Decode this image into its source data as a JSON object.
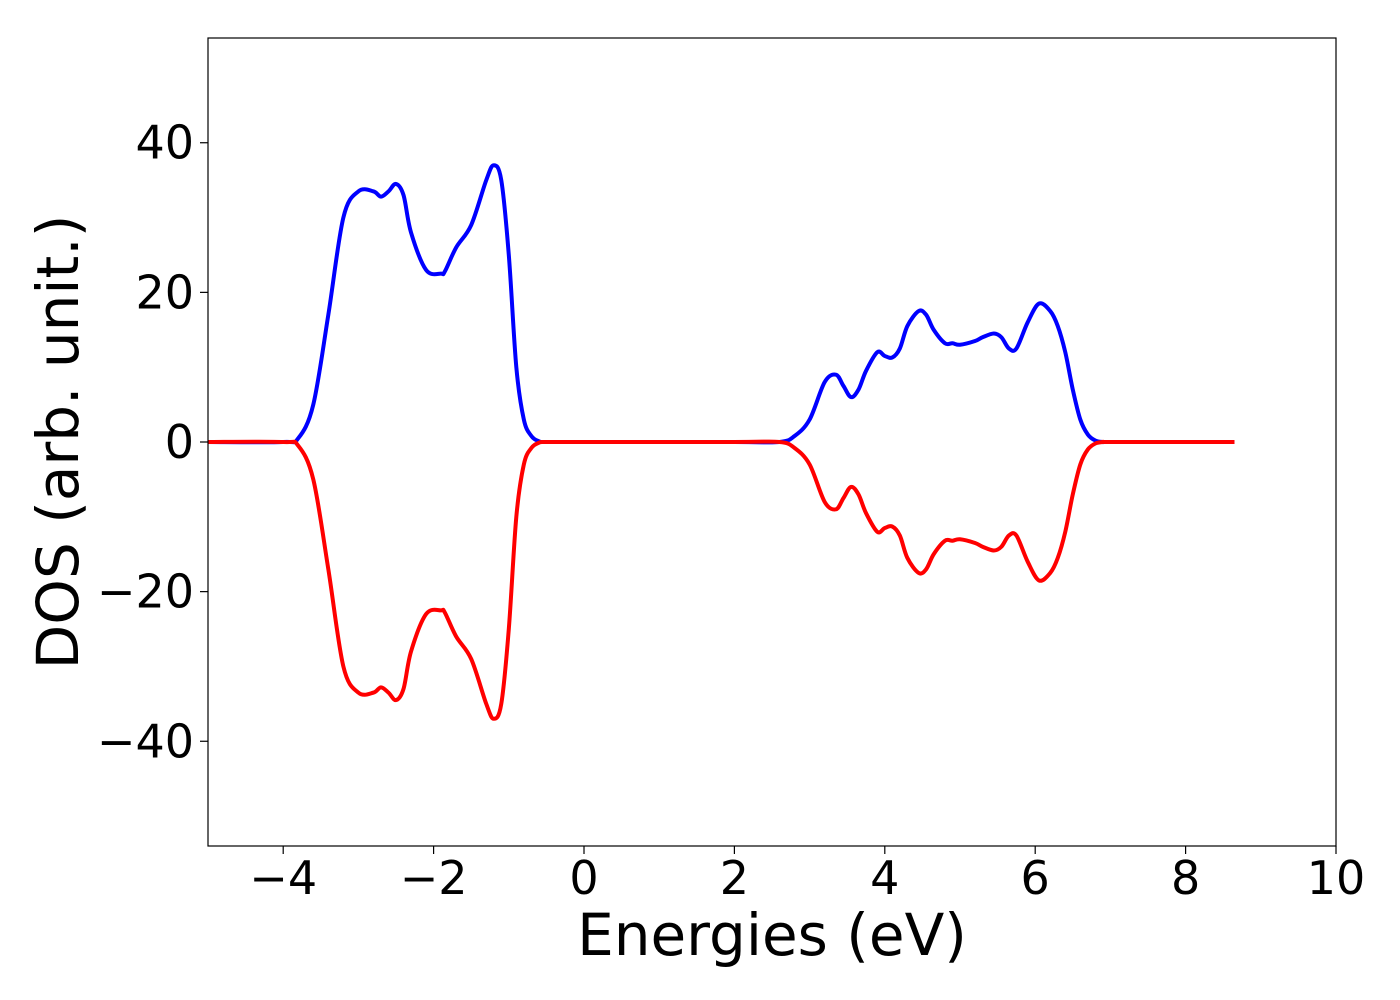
{
  "chart_data": {
    "type": "line",
    "title": "",
    "xlabel": "Energies (eV)",
    "ylabel": "DOS (arb. unit.)",
    "xlim": [
      -5,
      10
    ],
    "ylim": [
      -54,
      54
    ],
    "xticks": [
      -4,
      -2,
      0,
      2,
      4,
      6,
      8,
      10
    ],
    "yticks": [
      -40,
      -20,
      0,
      20,
      40
    ],
    "xtick_labels": [
      "−4",
      "−2",
      "0",
      "2",
      "4",
      "6",
      "8",
      "10"
    ],
    "ytick_labels": [
      "−40",
      "−20",
      "0",
      "20",
      "40"
    ],
    "grid": false,
    "legend": "none",
    "series": [
      {
        "color": "#0000ff",
        "x": [
          -5,
          -4.0,
          -3.8,
          -3.6,
          -3.4,
          -3.2,
          -3.0,
          -2.8,
          -2.7,
          -2.6,
          -2.5,
          -2.4,
          -2.3,
          -2.1,
          -1.9,
          -1.85,
          -1.7,
          -1.5,
          -1.3,
          -1.2,
          -1.1,
          -1.0,
          -0.9,
          -0.8,
          -0.7,
          -0.6,
          -0.5,
          0,
          2.0,
          2.6,
          2.8,
          3.0,
          3.2,
          3.35,
          3.45,
          3.55,
          3.65,
          3.75,
          3.9,
          4.0,
          4.1,
          4.2,
          4.3,
          4.45,
          4.55,
          4.65,
          4.8,
          4.9,
          5.0,
          5.2,
          5.3,
          5.45,
          5.55,
          5.65,
          5.75,
          5.9,
          6.05,
          6.2,
          6.3,
          6.4,
          6.5,
          6.6,
          6.7,
          6.8,
          6.9,
          7.0,
          8.0,
          8.65
        ],
        "y": [
          0,
          0,
          0.5,
          5,
          17,
          30,
          33.5,
          33.5,
          32.8,
          33.5,
          34.5,
          33,
          28,
          23,
          22.5,
          22.8,
          26,
          29,
          35,
          37,
          35,
          25,
          10,
          3,
          0.8,
          0.1,
          0,
          0,
          0,
          0,
          0.8,
          3,
          8,
          9,
          7.5,
          6,
          7,
          9.5,
          12,
          11.5,
          11.3,
          12.5,
          15.5,
          17.5,
          17,
          15,
          13.2,
          13.2,
          13.0,
          13.5,
          14,
          14.5,
          14,
          12.5,
          12.5,
          16,
          18.5,
          17.5,
          15.5,
          12,
          7,
          3,
          1,
          0.2,
          0,
          0,
          0,
          0
        ]
      },
      {
        "color": "#ff0000",
        "x": [
          -5,
          -4.0,
          -3.8,
          -3.6,
          -3.4,
          -3.2,
          -3.0,
          -2.8,
          -2.7,
          -2.6,
          -2.5,
          -2.4,
          -2.3,
          -2.1,
          -1.9,
          -1.85,
          -1.7,
          -1.5,
          -1.3,
          -1.2,
          -1.1,
          -1.0,
          -0.9,
          -0.8,
          -0.7,
          -0.6,
          -0.5,
          0,
          2.0,
          2.6,
          2.8,
          3.0,
          3.2,
          3.35,
          3.45,
          3.55,
          3.65,
          3.75,
          3.9,
          4.0,
          4.1,
          4.2,
          4.3,
          4.45,
          4.55,
          4.65,
          4.8,
          4.9,
          5.0,
          5.2,
          5.3,
          5.45,
          5.55,
          5.65,
          5.75,
          5.9,
          6.05,
          6.2,
          6.3,
          6.4,
          6.5,
          6.6,
          6.7,
          6.8,
          6.9,
          7.0,
          8.0,
          8.65
        ],
        "y": [
          0,
          0,
          -0.5,
          -5,
          -17,
          -30,
          -33.5,
          -33.5,
          -32.8,
          -33.5,
          -34.5,
          -33,
          -28,
          -23,
          -22.5,
          -22.8,
          -26,
          -29,
          -35,
          -37,
          -35,
          -25,
          -10,
          -3,
          -0.8,
          -0.1,
          0,
          0,
          0,
          0,
          -0.8,
          -3,
          -8,
          -9,
          -7.5,
          -6,
          -7,
          -9.5,
          -12,
          -11.5,
          -11.3,
          -12.5,
          -15.5,
          -17.5,
          -17,
          -15,
          -13.2,
          -13.2,
          -13.0,
          -13.5,
          -14,
          -14.5,
          -14,
          -12.5,
          -12.5,
          -16,
          -18.5,
          -17.5,
          -15.5,
          -12,
          -7,
          -3,
          -1,
          -0.2,
          0,
          0,
          0,
          0
        ]
      }
    ]
  }
}
